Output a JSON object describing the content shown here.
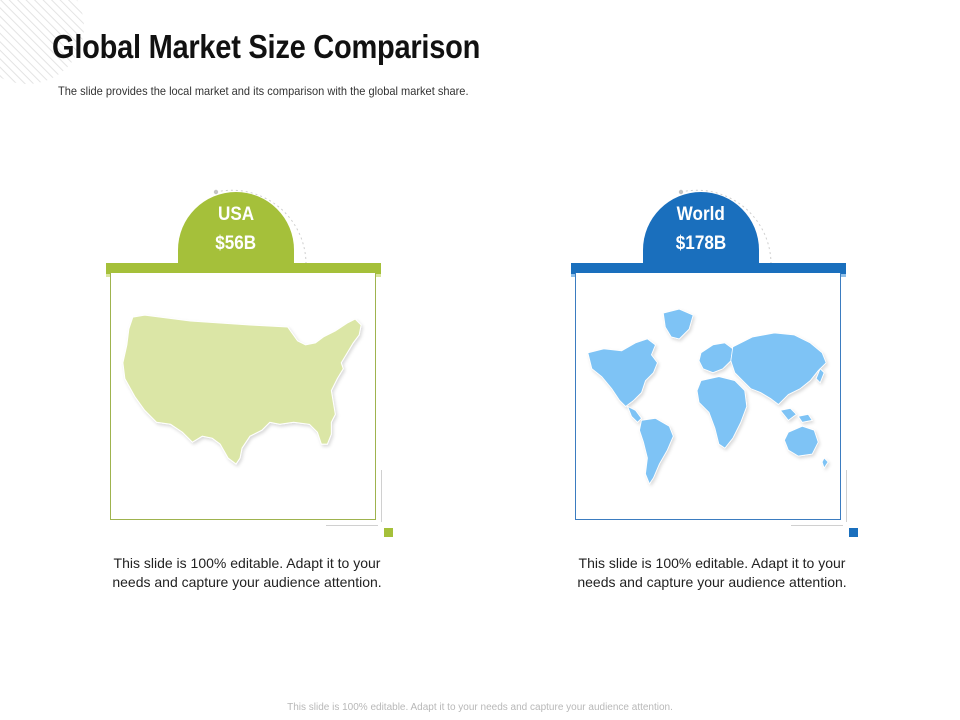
{
  "slide": {
    "title": "Global Market Size Comparison",
    "subtitle": "The slide provides the local market and its comparison with the global market share.",
    "footer": "This slide is 100% editable. Adapt it to your needs and capture your audience attention."
  },
  "cards": [
    {
      "region": "USA",
      "value": "$56B",
      "description": "This slide is 100% editable. Adapt it to your needs and capture your audience attention.",
      "accent_color": "#a5c03a",
      "map_color": "#dbe6a6",
      "map_icon": "usa-map-icon"
    },
    {
      "region": "World",
      "value": "$178B",
      "description": "This slide is 100% editable. Adapt it to your needs and capture your audience attention.",
      "accent_color": "#1a6fbd",
      "map_color": "#7ec3f5",
      "map_icon": "world-map-icon"
    }
  ]
}
